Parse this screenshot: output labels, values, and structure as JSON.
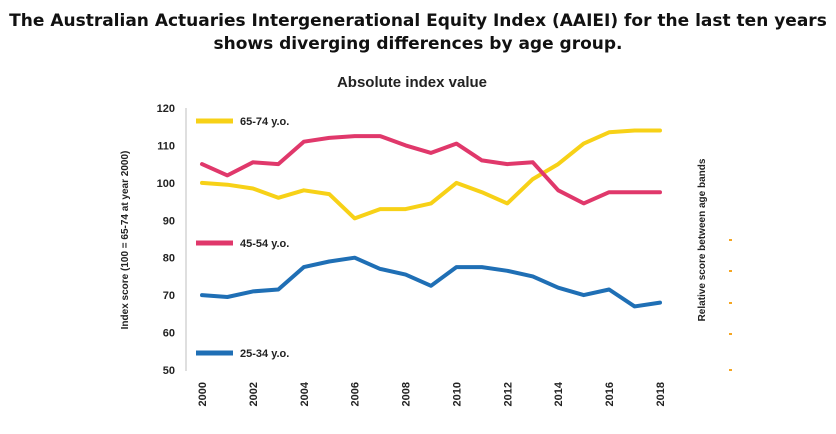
{
  "headline": {
    "line1": "The Australian Actuaries Intergenerational Equity Index (AAIEI) for the last ten years",
    "line2": "shows diverging differences by age group."
  },
  "chart_data": {
    "type": "line",
    "title": "Absolute index value",
    "ylabel": "Index score (100 = 65-74 at year 2000)",
    "y2label": "Relative score between age bands",
    "xlabel": "",
    "ylim": [
      50,
      120
    ],
    "yticks": [
      50,
      60,
      70,
      80,
      90,
      100,
      110,
      120
    ],
    "xlim": [
      2000,
      2018
    ],
    "xticks": [
      2000,
      2002,
      2004,
      2006,
      2008,
      2010,
      2012,
      2014,
      2016,
      2018
    ],
    "x": [
      2000,
      2001,
      2002,
      2003,
      2004,
      2005,
      2006,
      2007,
      2008,
      2009,
      2010,
      2011,
      2012,
      2013,
      2014,
      2015,
      2016,
      2017,
      2018
    ],
    "series": [
      {
        "name": "65-74 y.o.",
        "color": "#F7D117",
        "values": [
          100,
          99.5,
          98.5,
          96,
          98,
          97,
          90.5,
          93,
          93,
          94.5,
          100,
          97.5,
          94.5,
          101,
          105,
          110.5,
          113.5,
          114,
          114
        ]
      },
      {
        "name": "45-54 y.o.",
        "color": "#E0386B",
        "values": [
          105,
          102,
          105.5,
          105,
          111,
          112,
          112.5,
          112.5,
          110,
          108,
          110.5,
          106,
          105,
          105.5,
          98,
          94.5,
          97.5,
          97.5,
          97.5
        ]
      },
      {
        "name": "25-34 y.o.",
        "color": "#1F6FB5",
        "values": [
          70,
          69.5,
          71,
          71.5,
          77.5,
          79,
          80,
          77,
          75.5,
          72.5,
          77.5,
          77.5,
          76.5,
          75,
          72,
          70,
          71.5,
          67,
          68
        ]
      }
    ],
    "legend": "inline",
    "grid": false
  }
}
